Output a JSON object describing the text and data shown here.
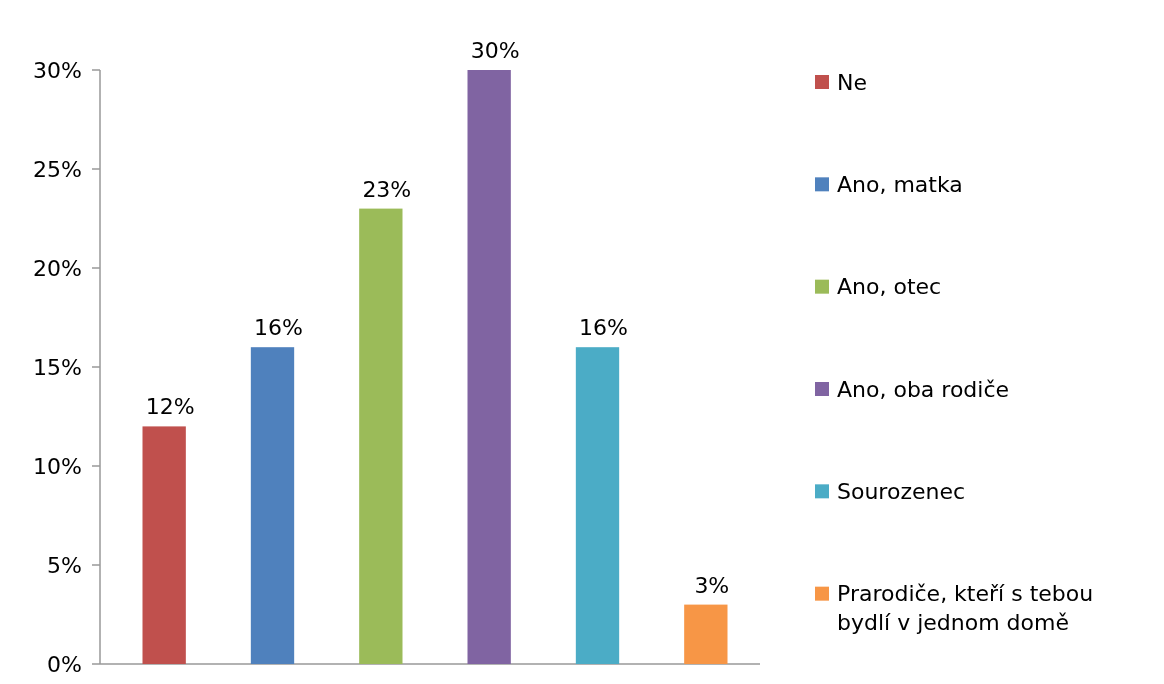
{
  "chart_data": {
    "type": "bar",
    "categories": [
      null,
      null,
      null,
      null,
      null,
      null
    ],
    "series": [
      {
        "name": "Ne",
        "color": "#c0504d",
        "values": [
          12,
          null,
          null,
          null,
          null,
          null
        ],
        "value_labels": [
          "12%",
          null,
          null,
          null,
          null,
          null
        ]
      },
      {
        "name": "Ano, matka",
        "color": "#4f81bd",
        "values": [
          null,
          16,
          null,
          null,
          null,
          null
        ],
        "value_labels": [
          null,
          "16%",
          null,
          null,
          null,
          null
        ]
      },
      {
        "name": "Ano, otec",
        "color": "#9bbb59",
        "values": [
          null,
          null,
          23,
          null,
          null,
          null
        ],
        "value_labels": [
          null,
          null,
          "23%",
          null,
          null,
          null
        ]
      },
      {
        "name": "Ano, oba rodiče",
        "color": "#8064a2",
        "values": [
          null,
          null,
          null,
          30,
          null,
          null
        ],
        "value_labels": [
          null,
          null,
          null,
          "30%",
          null,
          null
        ]
      },
      {
        "name": "Sourozenec",
        "color": "#4bacc6",
        "values": [
          null,
          null,
          null,
          null,
          16,
          null
        ],
        "value_labels": [
          null,
          null,
          null,
          null,
          "16%",
          null
        ]
      },
      {
        "name": "Prarodiče, kteří s tebou bydlí v jednom domě",
        "color": "#f79646",
        "values": [
          null,
          null,
          null,
          null,
          null,
          3
        ],
        "value_labels": [
          null,
          null,
          null,
          null,
          null,
          "3%"
        ]
      }
    ],
    "ylim": [
      0,
      30
    ],
    "yticks": [
      {
        "value": 0,
        "label": "0%"
      },
      {
        "value": 5,
        "label": "5%"
      },
      {
        "value": 10,
        "label": "10%"
      },
      {
        "value": 15,
        "label": "15%"
      },
      {
        "value": 20,
        "label": "20%"
      },
      {
        "value": 25,
        "label": "25%"
      },
      {
        "value": 30,
        "label": "30%"
      }
    ],
    "grid": false,
    "legend": "right"
  }
}
